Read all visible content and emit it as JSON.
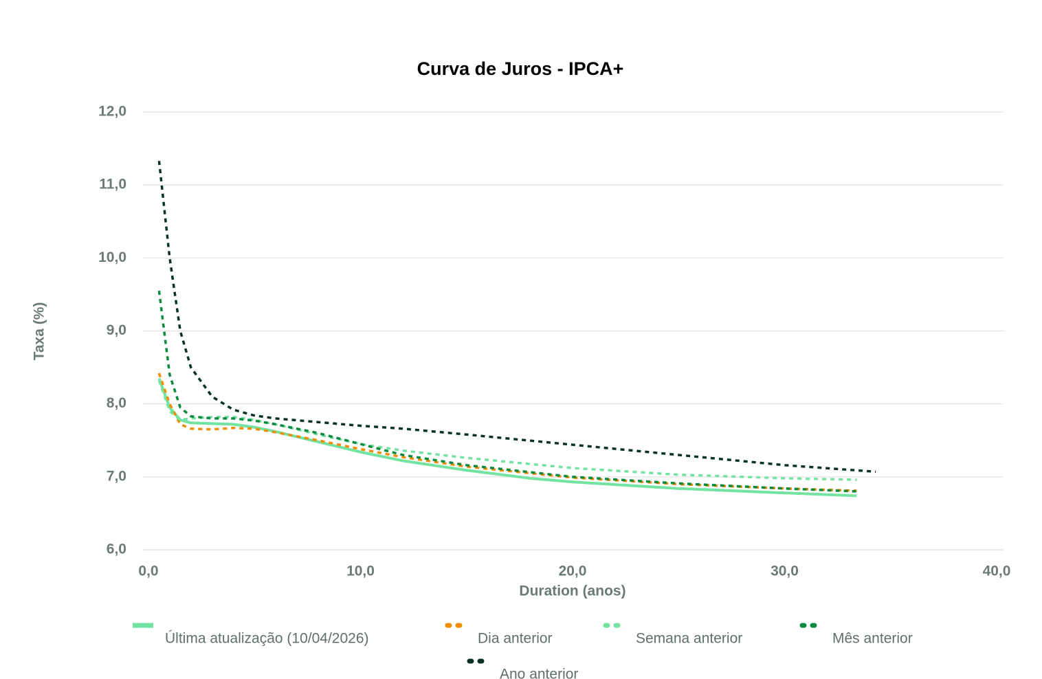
{
  "chart_data": {
    "type": "line",
    "title": "Curva de Juros - IPCA+",
    "xlabel": "Duration (anos)",
    "ylabel": "Taxa (%)",
    "xlim": [
      0,
      40
    ],
    "ylim": [
      6,
      12
    ],
    "xticks": [
      {
        "value": 0,
        "label": "0,0"
      },
      {
        "value": 10,
        "label": "10,0"
      },
      {
        "value": 20,
        "label": "20,0"
      },
      {
        "value": 30,
        "label": "30,0"
      },
      {
        "value": 40,
        "label": "40,0"
      }
    ],
    "yticks": [
      {
        "value": 6,
        "label": "6,0"
      },
      {
        "value": 7,
        "label": "7,0"
      },
      {
        "value": 8,
        "label": "8,0"
      },
      {
        "value": 9,
        "label": "9,0"
      },
      {
        "value": 10,
        "label": "10,0"
      },
      {
        "value": 11,
        "label": "11,0"
      },
      {
        "value": 12,
        "label": "12,0"
      }
    ],
    "grid": true,
    "series": [
      {
        "name": "Última atualização (10/04/2026)",
        "color": "#72e3a0",
        "style": "solid",
        "x": [
          0.5,
          1,
          1.5,
          2,
          3,
          4,
          5,
          6,
          8,
          10,
          12,
          15,
          18,
          20,
          25,
          30,
          33.4
        ],
        "values": [
          8.35,
          7.95,
          7.78,
          7.74,
          7.73,
          7.72,
          7.68,
          7.62,
          7.48,
          7.34,
          7.22,
          7.09,
          6.98,
          6.93,
          6.84,
          6.78,
          6.74
        ]
      },
      {
        "name": "Dia anterior",
        "color": "#f28c00",
        "style": "dotted",
        "x": [
          0.5,
          1,
          1.5,
          2,
          3,
          4,
          5,
          6,
          8,
          10,
          12,
          15,
          20,
          25,
          30,
          33.4
        ],
        "values": [
          8.42,
          8.0,
          7.72,
          7.66,
          7.65,
          7.67,
          7.66,
          7.61,
          7.5,
          7.38,
          7.27,
          7.14,
          6.99,
          6.9,
          6.84,
          6.81
        ]
      },
      {
        "name": "Semana anterior",
        "color": "#72e3a0",
        "style": "dotted",
        "x": [
          0.5,
          1,
          1.5,
          2,
          3,
          4,
          5,
          6,
          8,
          10,
          12,
          15,
          20,
          25,
          30,
          33.4
        ],
        "values": [
          8.32,
          7.9,
          7.78,
          7.8,
          7.82,
          7.82,
          7.78,
          7.72,
          7.58,
          7.45,
          7.36,
          7.26,
          7.12,
          7.03,
          6.98,
          6.96
        ]
      },
      {
        "name": "Mês anterior",
        "color": "#0a8a3f",
        "style": "dotted",
        "x": [
          0.5,
          1,
          1.5,
          2,
          3,
          4,
          5,
          6,
          8,
          10,
          12,
          15,
          20,
          25,
          30,
          33.4
        ],
        "values": [
          9.55,
          8.4,
          7.95,
          7.83,
          7.8,
          7.8,
          7.77,
          7.72,
          7.6,
          7.45,
          7.3,
          7.16,
          7.0,
          6.91,
          6.84,
          6.8
        ]
      },
      {
        "name": "Ano anterior",
        "color": "#0b3324",
        "style": "dotted",
        "x": [
          0.5,
          1,
          1.5,
          2,
          3,
          4,
          5,
          6,
          8,
          10,
          12,
          15,
          20,
          25,
          30,
          34.3
        ],
        "values": [
          11.33,
          10.0,
          9.0,
          8.5,
          8.1,
          7.92,
          7.84,
          7.8,
          7.75,
          7.7,
          7.66,
          7.58,
          7.44,
          7.3,
          7.16,
          7.07
        ]
      }
    ]
  }
}
